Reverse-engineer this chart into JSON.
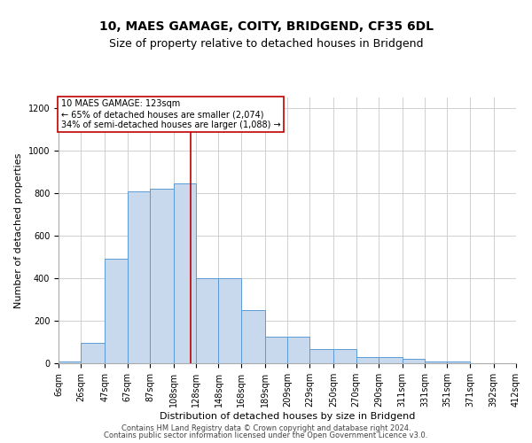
{
  "title1": "10, MAES GAMAGE, COITY, BRIDGEND, CF35 6DL",
  "title2": "Size of property relative to detached houses in Bridgend",
  "xlabel": "Distribution of detached houses by size in Bridgend",
  "ylabel": "Number of detached properties",
  "footnote1": "Contains HM Land Registry data © Crown copyright and database right 2024.",
  "footnote2": "Contains public sector information licensed under the Open Government Licence v3.0.",
  "annotation_line1": "10 MAES GAMAGE: 123sqm",
  "annotation_line2": "← 65% of detached houses are smaller (2,074)",
  "annotation_line3": "34% of semi-detached houses are larger (1,088) →",
  "property_size": 123,
  "bin_edges": [
    6,
    26,
    47,
    67,
    87,
    108,
    128,
    148,
    168,
    189,
    209,
    229,
    250,
    270,
    290,
    311,
    331,
    351,
    371,
    392,
    412
  ],
  "bin_labels": [
    "6sqm",
    "26sqm",
    "47sqm",
    "67sqm",
    "87sqm",
    "108sqm",
    "128sqm",
    "148sqm",
    "168sqm",
    "189sqm",
    "209sqm",
    "229sqm",
    "250sqm",
    "270sqm",
    "290sqm",
    "311sqm",
    "331sqm",
    "351sqm",
    "371sqm",
    "392sqm",
    "412sqm"
  ],
  "bar_heights": [
    10,
    95,
    490,
    810,
    820,
    845,
    400,
    400,
    250,
    125,
    125,
    65,
    65,
    30,
    30,
    20,
    10,
    10,
    2,
    2,
    0
  ],
  "bar_color": "#c8d9ed",
  "bar_edge_color": "#5b9bd5",
  "vline_x": 123,
  "vline_color": "#c00000",
  "ylim": [
    0,
    1250
  ],
  "yticks": [
    0,
    200,
    400,
    600,
    800,
    1000,
    1200
  ],
  "grid_color": "#d0d0d0",
  "background_color": "#ffffff",
  "title1_fontsize": 10,
  "title2_fontsize": 9,
  "ylabel_fontsize": 8,
  "xlabel_fontsize": 8,
  "tick_fontsize": 7,
  "annot_fontsize": 7,
  "footnote_fontsize": 6
}
